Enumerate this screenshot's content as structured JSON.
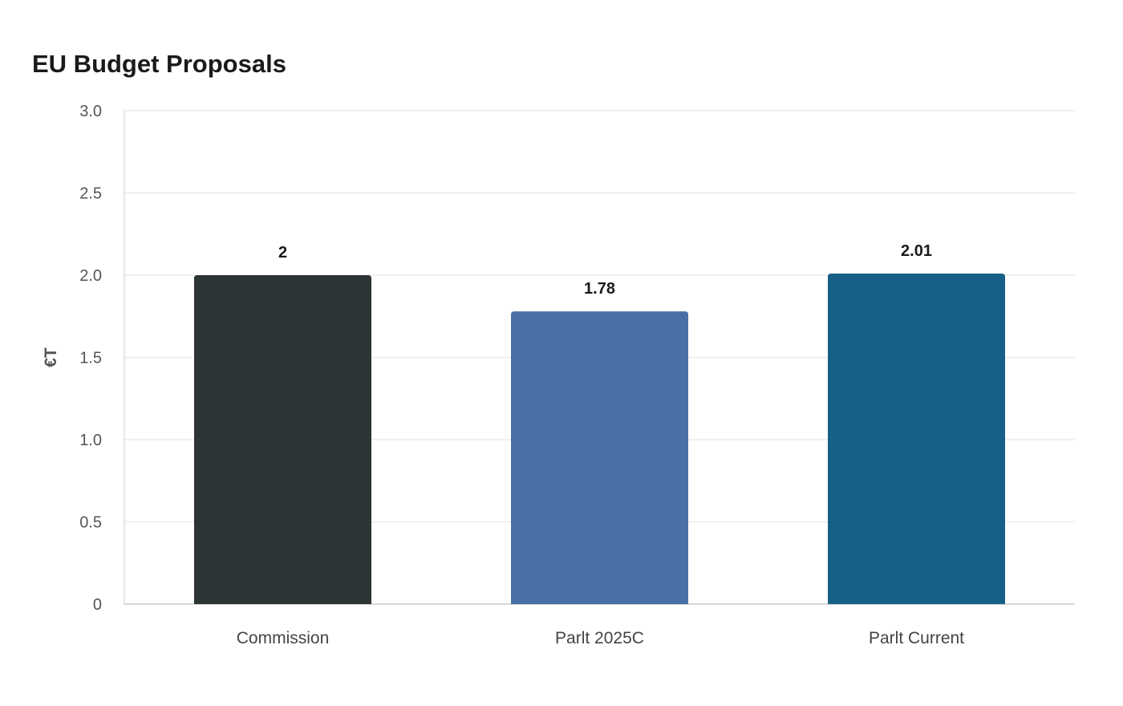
{
  "chart_data": {
    "type": "bar",
    "title": "EU Budget Proposals",
    "xlabel": "",
    "ylabel": "€T",
    "categories": [
      "Commission",
      "Parlt 2025C",
      "Parlt Current"
    ],
    "values": [
      2,
      1.78,
      2.01
    ],
    "data_labels": [
      "2",
      "1.78",
      "2.01"
    ],
    "bar_colors": [
      "#2d3436",
      "#4a6fa5",
      "#166088"
    ],
    "ylim": [
      0,
      3
    ],
    "yticks": [
      0,
      0.5,
      1,
      1.5,
      2,
      2.5,
      3
    ],
    "ytick_labels": [
      "0",
      "0.5",
      "1.0",
      "1.5",
      "2.0",
      "2.5",
      "3.0"
    ],
    "grid": true,
    "legend": "none"
  }
}
